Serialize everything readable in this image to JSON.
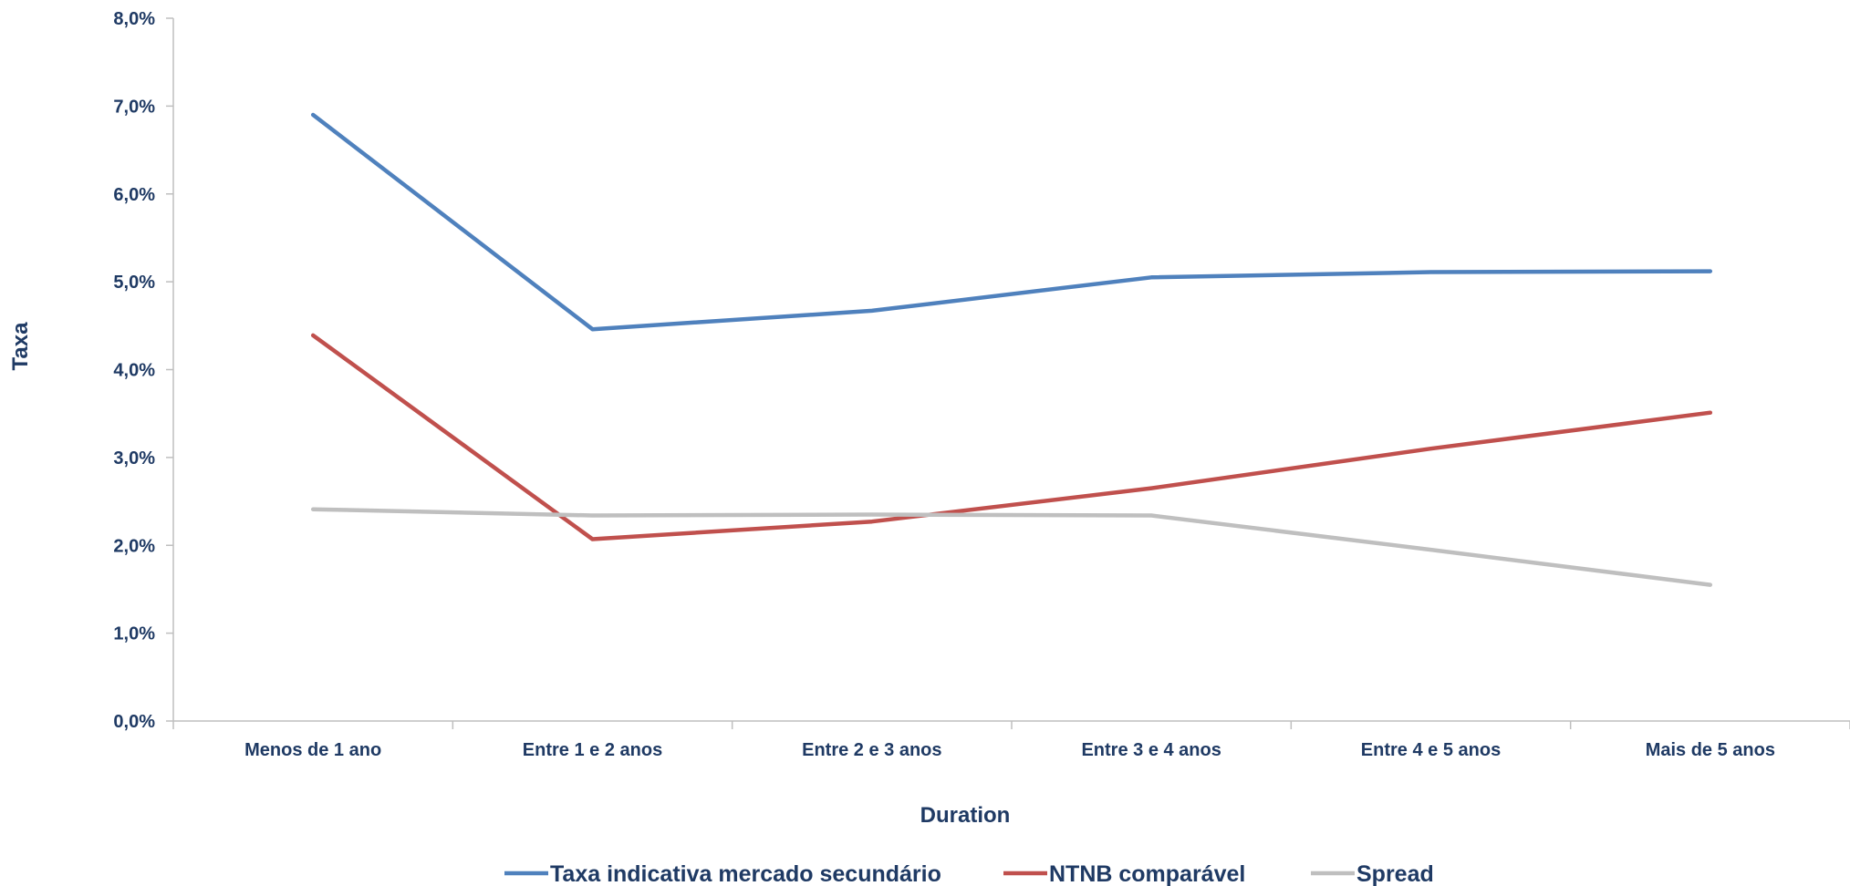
{
  "chart_data": {
    "type": "line",
    "title": "",
    "xlabel": "Duration",
    "ylabel": "Taxa",
    "categories": [
      "Menos de 1 ano",
      "Entre 1 e 2 anos",
      "Entre 2 e 3 anos",
      "Entre 3 e 4 anos",
      "Entre 4 e 5 anos",
      "Mais de 5 anos"
    ],
    "ylim": [
      0,
      8
    ],
    "yticks": [
      0,
      1,
      2,
      3,
      4,
      5,
      6,
      7,
      8
    ],
    "ytick_labels": [
      "0,0%",
      "1,0%",
      "2,0%",
      "3,0%",
      "4,0%",
      "5,0%",
      "6,0%",
      "7,0%",
      "8,0%"
    ],
    "grid": false,
    "legend_position": "bottom",
    "series": [
      {
        "name": "Taxa indicativa mercado secundário",
        "color": "#4f81bd",
        "values": [
          6.9,
          4.46,
          4.67,
          5.05,
          5.11,
          5.12
        ]
      },
      {
        "name": "NTNB comparável",
        "color": "#c0504d",
        "values": [
          4.39,
          2.07,
          2.27,
          2.65,
          3.1,
          3.51
        ]
      },
      {
        "name": "Spread",
        "color": "#bfbfbf",
        "values": [
          2.41,
          2.34,
          2.35,
          2.34,
          1.95,
          1.55
        ]
      }
    ]
  }
}
